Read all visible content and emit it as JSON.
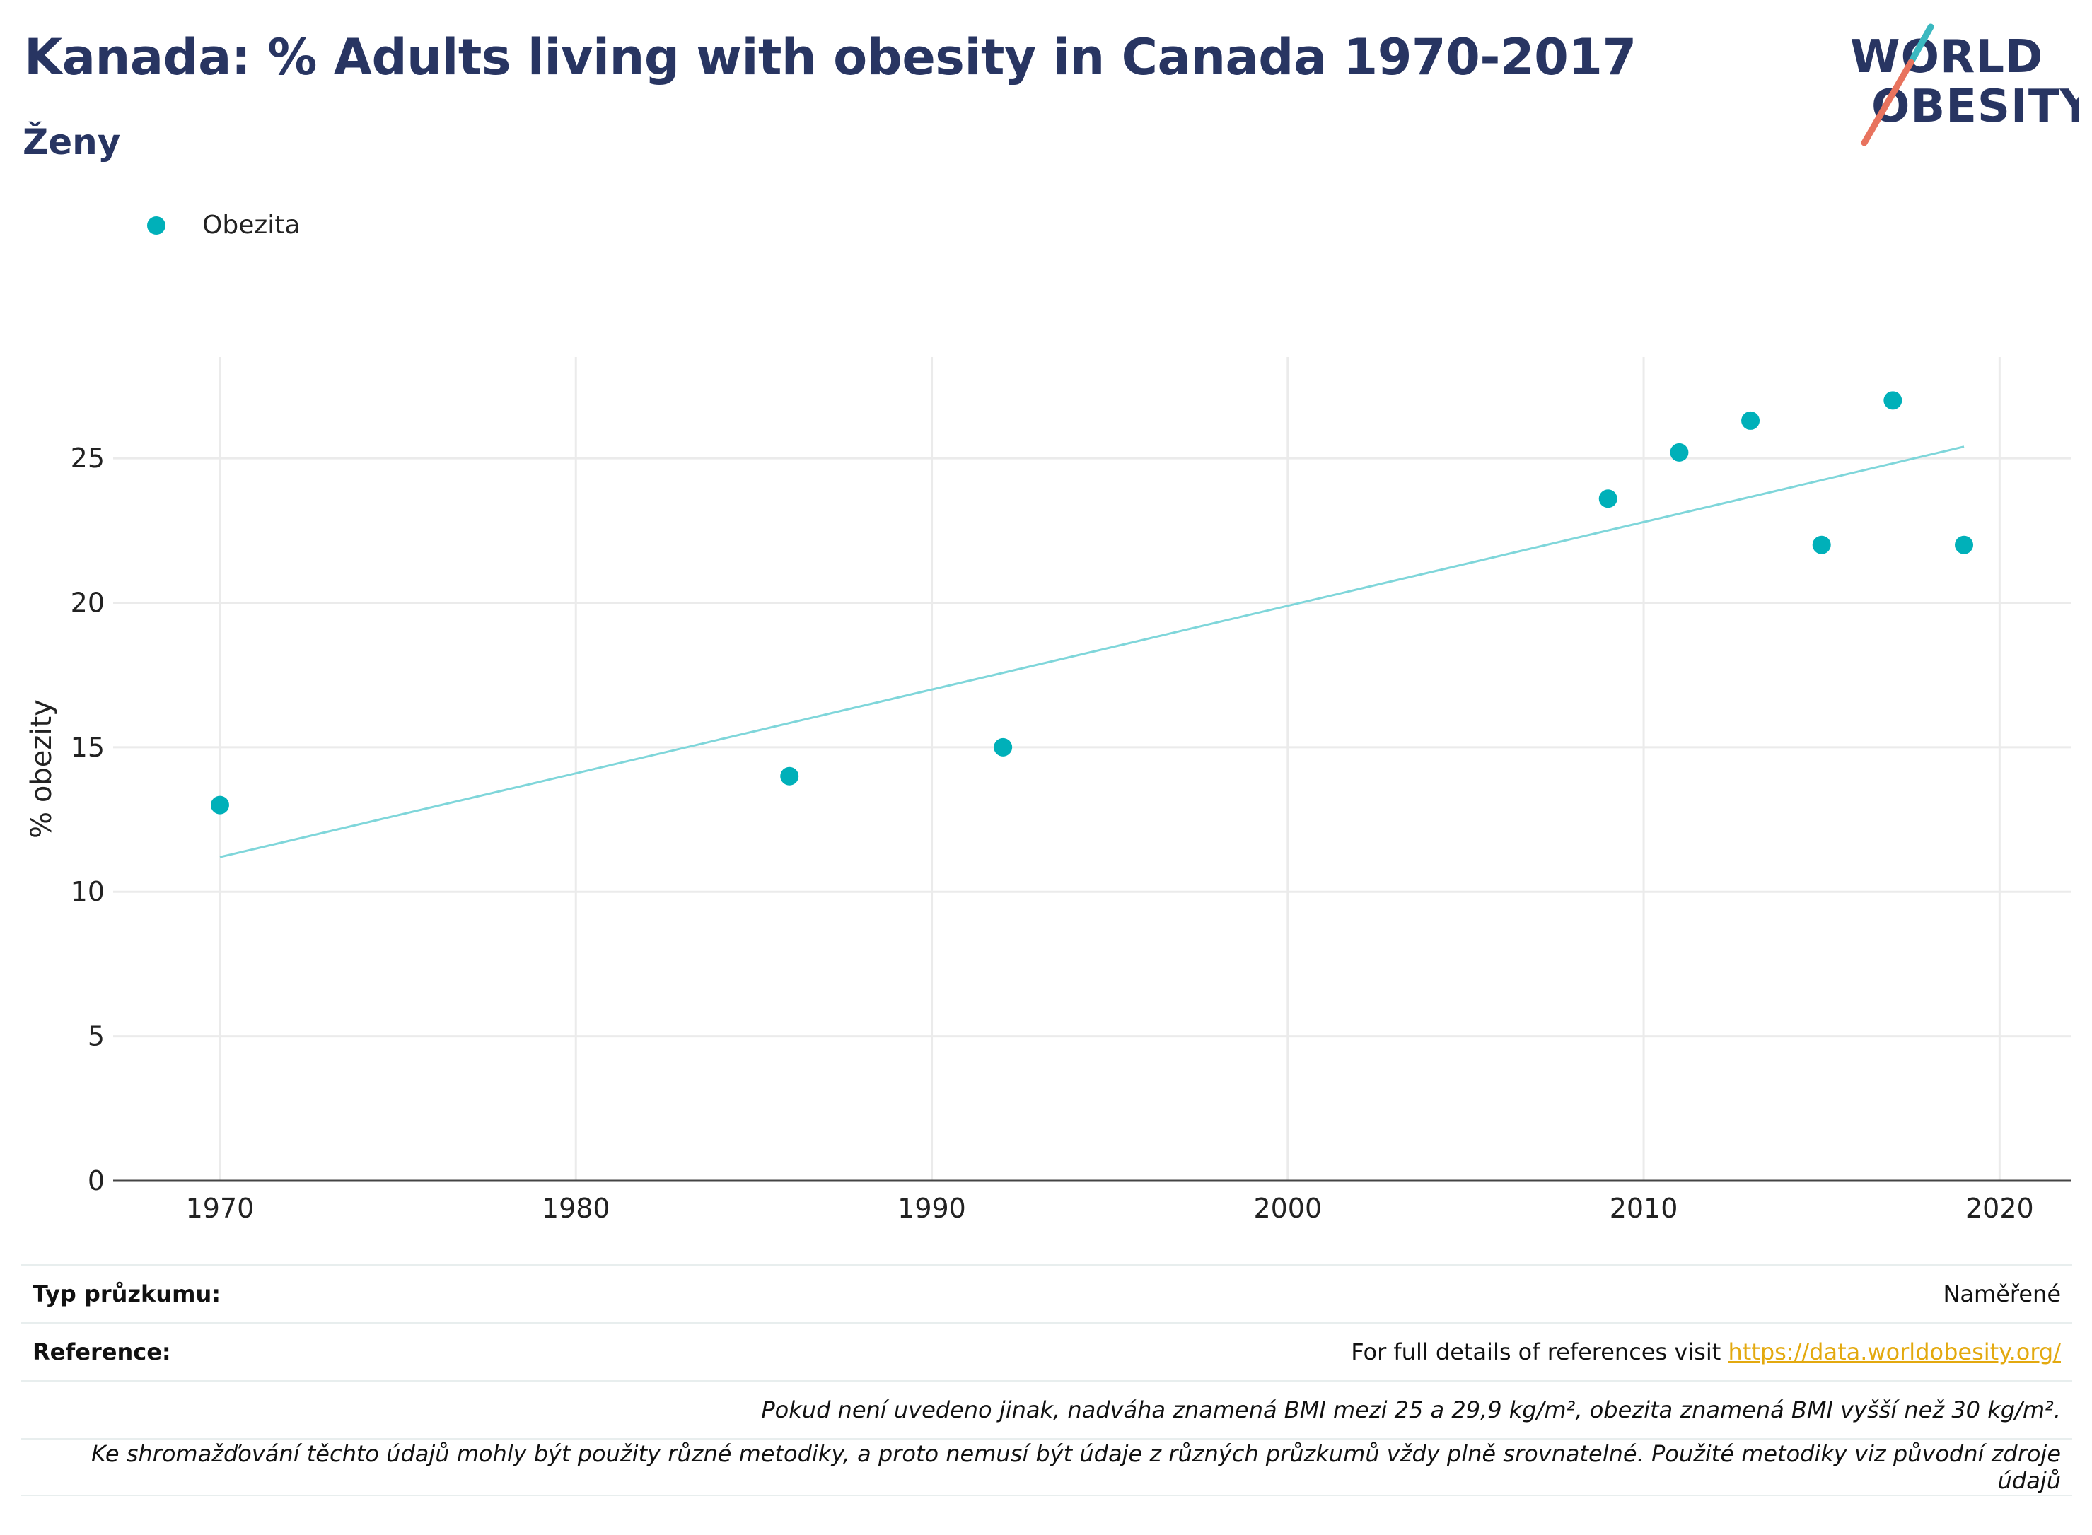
{
  "title": "Kanada: % Adults living with obesity in Canada 1970-2017",
  "subtitle": "Ženy",
  "logo": {
    "line1": "WORLD",
    "line2": "OBESITY"
  },
  "colors": {
    "title": "#283562",
    "series": "#00b0b9",
    "trend": "#7fd6da",
    "logo_teal": "#3ab8c0",
    "logo_coral": "#e8735e",
    "link": "#e3a90f"
  },
  "chart_data": {
    "type": "scatter",
    "title": "Kanada: % Adults living with obesity in Canada 1970-2017",
    "subtitle": "Ženy",
    "xlabel": "",
    "ylabel": "% obezity",
    "xlim": [
      1967,
      2022
    ],
    "ylim": [
      0,
      28.5
    ],
    "xticks": [
      1970,
      1980,
      1990,
      2000,
      2010,
      2020
    ],
    "yticks": [
      0,
      5,
      10,
      15,
      20,
      25
    ],
    "grid": true,
    "legend_position": "top-left",
    "series": [
      {
        "name": "Obezita",
        "x": [
          1970,
          1986,
          1992,
          2009,
          2011,
          2013,
          2015,
          2017,
          2019
        ],
        "y": [
          13.0,
          14.0,
          15.0,
          23.6,
          25.2,
          26.3,
          22.0,
          27.0,
          22.0
        ]
      }
    ],
    "trendline": {
      "x": [
        1970,
        2019
      ],
      "y": [
        11.2,
        25.4
      ]
    }
  },
  "footer": {
    "survey_label": "Typ průzkumu:",
    "survey_value": "Naměřené",
    "reference_label": "Reference:",
    "reference_text": "For full details of references visit ",
    "reference_link": "https://data.worldobesity.org/",
    "note1": "Pokud není uvedeno jinak, nadváha znamená BMI mezi 25 a 29,9 kg/m², obezita znamená BMI vyšší než 30 kg/m².",
    "note2": "Ke shromažďování těchto údajů mohly být použity různé metodiky, a proto nemusí být údaje z různých průzkumů vždy plně srovnatelné. Použité metodiky viz původní zdroje údajů"
  }
}
